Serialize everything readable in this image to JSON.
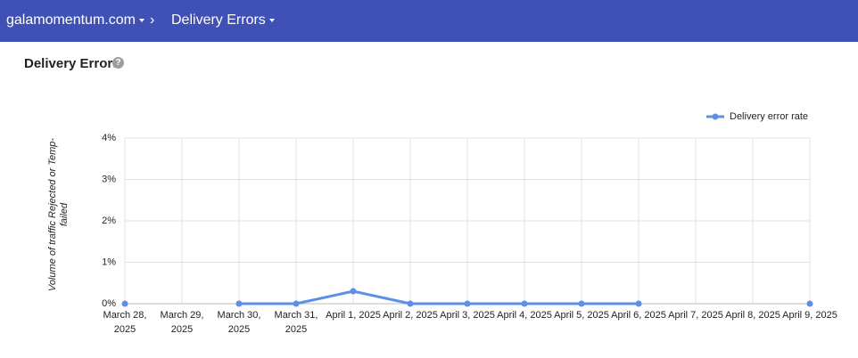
{
  "header": {
    "domain": "galamomentum.com",
    "page": "Delivery Errors"
  },
  "section_title": "Delivery Errors",
  "chart_data": {
    "type": "line",
    "y_label": "Volume of traffic Rejected or Temp-failed",
    "categories": [
      "March 28, 2025",
      "March 29, 2025",
      "March 30, 2025",
      "March 31, 2025",
      "April 1, 2025",
      "April 2, 2025",
      "April 3, 2025",
      "April 4, 2025",
      "April 5, 2025",
      "April 6, 2025",
      "April 7, 2025",
      "April 8, 2025",
      "April 9, 2025"
    ],
    "series": [
      {
        "name": "Delivery error rate",
        "color": "#5c8fe6",
        "values": [
          0,
          null,
          0,
          0,
          0.3,
          0,
          0,
          0,
          0,
          0,
          null,
          null,
          0
        ]
      }
    ],
    "ylim": [
      0,
      4
    ],
    "yticks": [
      {
        "value": 0,
        "label": "0%"
      },
      {
        "value": 1,
        "label": "1%"
      },
      {
        "value": 2,
        "label": "2%"
      },
      {
        "value": 3,
        "label": "3%"
      },
      {
        "value": 4,
        "label": "4%"
      }
    ],
    "grid": true,
    "legend": "top-right"
  }
}
